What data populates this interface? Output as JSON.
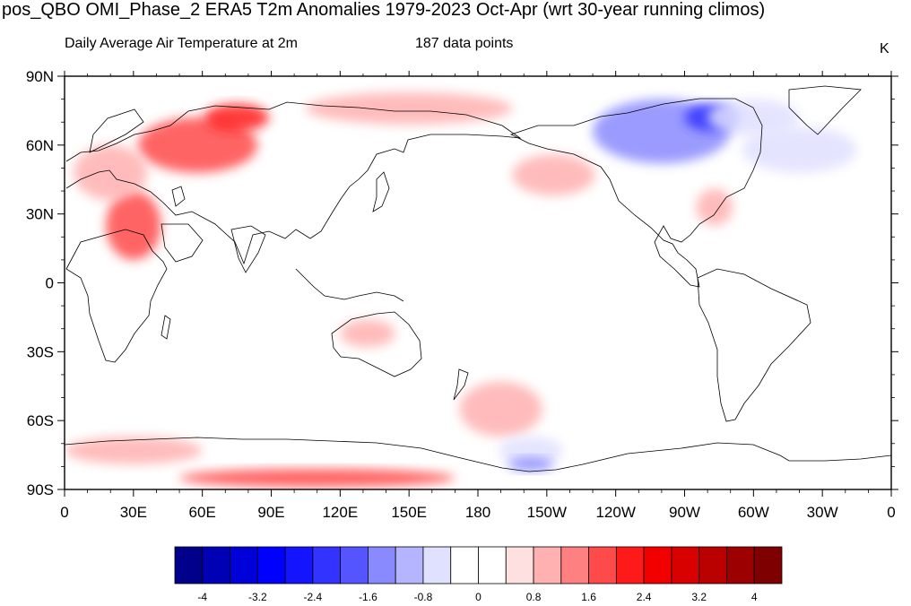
{
  "title": "pos_QBO OMI_Phase_2 ERA5 T2m Anomalies 1979-2023 Oct-Apr (wrt 30-year running climos)",
  "subtitle_left": "Daily Average Air Temperature at 2m",
  "subtitle_mid": "187 data points",
  "units": "K",
  "axes": {
    "x_ticks": [
      {
        "lon": 0,
        "label": "0"
      },
      {
        "lon": 30,
        "label": "30E"
      },
      {
        "lon": 60,
        "label": "60E"
      },
      {
        "lon": 90,
        "label": "90E"
      },
      {
        "lon": 120,
        "label": "120E"
      },
      {
        "lon": 150,
        "label": "150E"
      },
      {
        "lon": 180,
        "label": "180"
      },
      {
        "lon": 210,
        "label": "150W"
      },
      {
        "lon": 240,
        "label": "120W"
      },
      {
        "lon": 270,
        "label": "90W"
      },
      {
        "lon": 300,
        "label": "60W"
      },
      {
        "lon": 330,
        "label": "30W"
      },
      {
        "lon": 360,
        "label": "0"
      }
    ],
    "y_ticks": [
      {
        "lat": 90,
        "label": "90N"
      },
      {
        "lat": 60,
        "label": "60N"
      },
      {
        "lat": 30,
        "label": "30N"
      },
      {
        "lat": 0,
        "label": "0"
      },
      {
        "lat": -30,
        "label": "30S"
      },
      {
        "lat": -60,
        "label": "60S"
      },
      {
        "lat": -90,
        "label": "90S"
      }
    ],
    "lon_range": [
      0,
      360
    ],
    "lat_range": [
      -90,
      90
    ]
  },
  "colorbar": {
    "colors": [
      "#00008b",
      "#0000b4",
      "#0000d8",
      "#0000ff",
      "#1414ff",
      "#3333ff",
      "#5555ff",
      "#8a8aff",
      "#b4b4ff",
      "#e0e0ff",
      "#ffffff",
      "#ffffff",
      "#ffe0e0",
      "#ffb0b0",
      "#ff8080",
      "#ff4a4a",
      "#ff1a1a",
      "#f20000",
      "#d90000",
      "#bb0000",
      "#9c0000",
      "#7f0000"
    ],
    "labels": [
      {
        "index": 1,
        "text": "-4"
      },
      {
        "index": 3,
        "text": "-3.2"
      },
      {
        "index": 5,
        "text": "-2.4"
      },
      {
        "index": 7,
        "text": "-1.6"
      },
      {
        "index": 9,
        "text": "-0.8"
      },
      {
        "index": 11,
        "text": "0"
      },
      {
        "index": 13,
        "text": "0.8"
      },
      {
        "index": 15,
        "text": "1.6"
      },
      {
        "index": 17,
        "text": "2.4"
      },
      {
        "index": 19,
        "text": "3.2"
      },
      {
        "index": 21,
        "text": "4"
      }
    ]
  },
  "anomaly_regions": [
    {
      "name": "western-russia-warm",
      "lon": 58,
      "lat": 60,
      "rlon": 26,
      "rlat": 12,
      "value": 1.6
    },
    {
      "name": "northern-siberia-warm",
      "lon": 75,
      "lat": 72,
      "rlon": 14,
      "rlat": 6,
      "value": 2.4
    },
    {
      "name": "siberia-arctic-warm",
      "lon": 150,
      "lat": 76,
      "rlon": 45,
      "rlat": 7,
      "value": 0.8
    },
    {
      "name": "middle-east-warm",
      "lon": 30,
      "lat": 25,
      "rlon": 12,
      "rlat": 15,
      "value": 1.6
    },
    {
      "name": "europe-warm",
      "lon": 20,
      "lat": 48,
      "rlon": 16,
      "rlat": 12,
      "value": 0.8
    },
    {
      "name": "canada-cold",
      "lon": 260,
      "lat": 66,
      "rlon": 30,
      "rlat": 14,
      "value": -1.6
    },
    {
      "name": "hudson-cold",
      "lon": 282,
      "lat": 72,
      "rlon": 12,
      "rlat": 6,
      "value": -2.4
    },
    {
      "name": "greenland-cold",
      "lon": 300,
      "lat": 72,
      "rlon": 20,
      "rlat": 8,
      "value": -0.8
    },
    {
      "name": "north-atlantic-cold",
      "lon": 320,
      "lat": 58,
      "rlon": 25,
      "rlat": 10,
      "value": -0.8
    },
    {
      "name": "eastern-us-warm",
      "lon": 283,
      "lat": 33,
      "rlon": 8,
      "rlat": 8,
      "value": 0.8
    },
    {
      "name": "north-pacific-warm",
      "lon": 213,
      "lat": 47,
      "rlon": 18,
      "rlat": 9,
      "value": 0.8
    },
    {
      "name": "australia-warm",
      "lon": 132,
      "lat": -22,
      "rlon": 12,
      "rlat": 6,
      "value": 0.8
    },
    {
      "name": "south-pacific-warm",
      "lon": 190,
      "lat": -55,
      "rlon": 18,
      "rlat": 12,
      "value": 0.8
    },
    {
      "name": "ross-sea-cold",
      "lon": 203,
      "lat": -73,
      "rlon": 14,
      "rlat": 6,
      "value": -0.8
    },
    {
      "name": "ross-ice-cold",
      "lon": 203,
      "lat": -79,
      "rlon": 10,
      "rlat": 3,
      "value": -1.6
    },
    {
      "name": "antarctic-warm-east",
      "lon": 110,
      "lat": -85,
      "rlon": 60,
      "rlat": 4,
      "value": 1.6
    },
    {
      "name": "southern-ocean-warm",
      "lon": 30,
      "lat": -73,
      "rlon": 30,
      "rlat": 6,
      "value": 0.8
    }
  ]
}
